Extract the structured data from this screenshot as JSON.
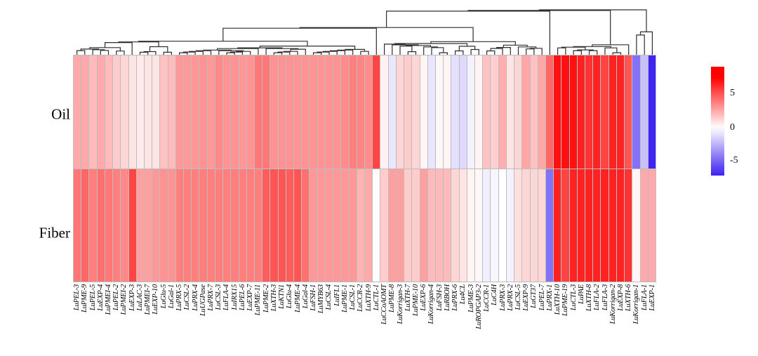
{
  "figure": {
    "type": "clustered-heatmap",
    "background": "#ffffff",
    "accent_red": "#ff0000",
    "accent_blue": "#3214f0",
    "grid_line_color": "#bdbdbd"
  },
  "rows": {
    "r0": "Oil",
    "r1": "Fiber"
  },
  "legend": {
    "tick_high": "5",
    "tick_mid": "0",
    "tick_low": "-5"
  },
  "chart_data": {
    "type": "heatmap",
    "title": "",
    "xlabel": "",
    "ylabel": "",
    "row_categories": [
      "Oil",
      "Fiber"
    ],
    "categories": [
      "LuPEL-3",
      "LuPME-9",
      "LuPEL-5",
      "LuEXP-4",
      "LuPMEI-4",
      "LuPEL-2",
      "LuPMEI-2",
      "LuEXP-3",
      "LuLAC-3",
      "LuPMEI-7",
      "LuEXP-10",
      "LuGlu-5",
      "LuGal-1",
      "LuPRX-5",
      "LuCSL-2",
      "LuPRX-4",
      "LuUGPase",
      "LuPRX-7",
      "LuCSL-3",
      "LuFLA-4",
      "LuIRX15",
      "LuPEL-6",
      "LuEXP-7",
      "LuPME-11",
      "LuPME-2",
      "LuXTH-3",
      "LuKTN1",
      "LuGlu-4",
      "LuPME-4",
      "LuGal-4",
      "LuFSH-1",
      "LuMYB63",
      "LuCSL-4",
      "LuIFL1",
      "LuPME-1",
      "LuCSL-1",
      "LuCCR-2",
      "LuXTH-9",
      "LuCTL-1",
      "LuCCoAOMT",
      "LuPME-8",
      "LuKorrigan-3",
      "LuXTH-7",
      "LuPME-10",
      "LuEXP-6",
      "LuKorrigan-4",
      "LuFSH-3",
      "LuRBOH",
      "LuPRX-6",
      "Lu4CL",
      "LuPME-3",
      "LuROPGAP3-2",
      "LuCCR-1",
      "LuC4H",
      "LuPRX-3",
      "LuPRX-2",
      "LuCSL-5",
      "LuEXP-9",
      "LuGT37",
      "LuPEL-7",
      "LuPRX-1",
      "LuXTH-10",
      "LuPME-19",
      "LuCTL-3",
      "LuPAE",
      "LuXTH-8",
      "LuFLA-2",
      "LuFLA-3",
      "LuKorrigan-2",
      "LuEXP-8",
      "LuXTH-6",
      "LuKorrigan-1",
      "LuFLA-1",
      "LuEXP-1"
    ],
    "series": [
      {
        "name": "Oil",
        "values": [
          2.5,
          2.5,
          2.0,
          2.5,
          2.0,
          1.5,
          1.2,
          0.8,
          0.6,
          0.8,
          0.8,
          1.8,
          2.0,
          3.0,
          3.0,
          3.0,
          3.2,
          3.0,
          3.5,
          3.2,
          3.2,
          3.0,
          3.2,
          4.0,
          4.0,
          3.2,
          3.2,
          3.2,
          3.2,
          3.2,
          3.2,
          3.2,
          3.2,
          3.2,
          3.4,
          3.8,
          3.6,
          3.4,
          5.5,
          0.4,
          -0.8,
          1.2,
          1.5,
          1.2,
          0.3,
          -0.8,
          0.2,
          0.3,
          -1.0,
          -1.2,
          -0.4,
          0.3,
          1.8,
          1.4,
          2.4,
          0.8,
          1.2,
          2.6,
          1.8,
          2.6,
          4.5,
          7.0,
          7.0,
          7.0,
          6.5,
          6.0,
          6.5,
          5.5,
          6.5,
          6.5,
          5.0,
          -4.5,
          -2.0,
          -7.0
        ]
      },
      {
        "name": "Fiber",
        "values": [
          4.0,
          4.5,
          3.8,
          4.2,
          4.0,
          3.8,
          3.5,
          5.5,
          2.8,
          2.8,
          3.0,
          3.2,
          3.2,
          3.8,
          3.8,
          3.8,
          3.8,
          3.8,
          3.8,
          3.8,
          3.8,
          3.8,
          3.8,
          3.8,
          4.8,
          5.0,
          5.0,
          4.8,
          5.0,
          4.2,
          3.0,
          3.0,
          3.0,
          3.0,
          3.0,
          3.0,
          2.2,
          2.5,
          0.1,
          1.5,
          2.8,
          2.8,
          1.5,
          1.5,
          2.8,
          2.0,
          2.0,
          2.0,
          1.2,
          0.8,
          0.3,
          0.2,
          -0.5,
          -0.3,
          0.0,
          -0.4,
          0.9,
          1.2,
          1.2,
          1.2,
          -4.5,
          6.5,
          5.5,
          6.5,
          6.5,
          6.5,
          6.5,
          6.5,
          6.5,
          6.5,
          6.0,
          0.3,
          2.5,
          2.5
        ]
      }
    ],
    "legend_ticks": [
      5,
      0,
      -5
    ],
    "color_scale": {
      "positive": "#ff0000",
      "zero": "#ffffff",
      "negative": "#3214f0",
      "saturation_value": 7.5
    },
    "legend_position": "right",
    "dendrogram": "columns, top",
    "grid": true
  }
}
